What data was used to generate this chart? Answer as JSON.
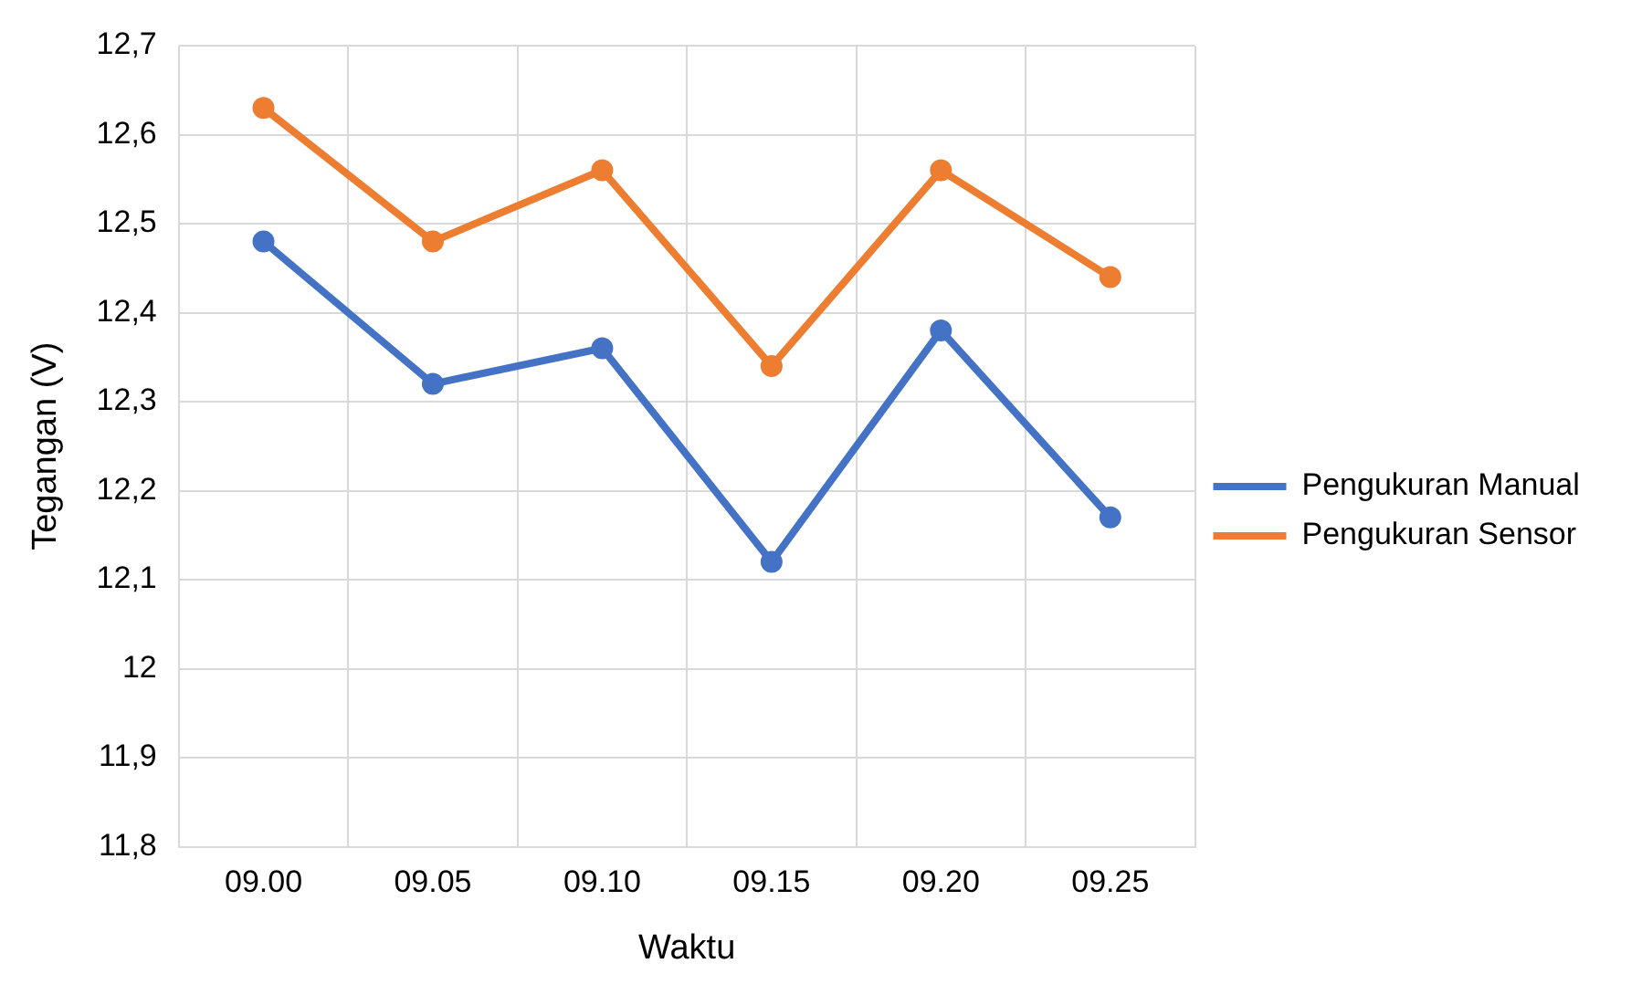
{
  "chart_data": {
    "type": "line",
    "xlabel": "Waktu",
    "ylabel": "Tegangan (V)",
    "categories": [
      "09.00",
      "09.05",
      "09.10",
      "09.15",
      "09.20",
      "09.25"
    ],
    "series": [
      {
        "name": "Pengukuran Manual",
        "color": "#4472c4",
        "values": [
          12.48,
          12.32,
          12.36,
          12.12,
          12.38,
          12.17
        ]
      },
      {
        "name": "Pengukuran Sensor",
        "color": "#ed7d31",
        "values": [
          12.63,
          12.48,
          12.56,
          12.34,
          12.56,
          12.44
        ]
      }
    ],
    "ylim": [
      11.8,
      12.7
    ],
    "yticks": [
      {
        "value": 11.8,
        "label": "11,8"
      },
      {
        "value": 11.9,
        "label": "11,9"
      },
      12,
      {
        "value": 12.1,
        "label": "12,1"
      },
      {
        "value": 12.2,
        "label": "12,2"
      },
      {
        "value": 12.3,
        "label": "12,3"
      },
      {
        "value": 12.4,
        "label": "12,4"
      },
      {
        "value": 12.5,
        "label": "12,5"
      },
      {
        "value": 12.6,
        "label": "12,6"
      },
      {
        "value": 12.7,
        "label": "12,7"
      }
    ],
    "grid": true,
    "legend": "right",
    "marker": "circle",
    "line_style": "solid"
  }
}
